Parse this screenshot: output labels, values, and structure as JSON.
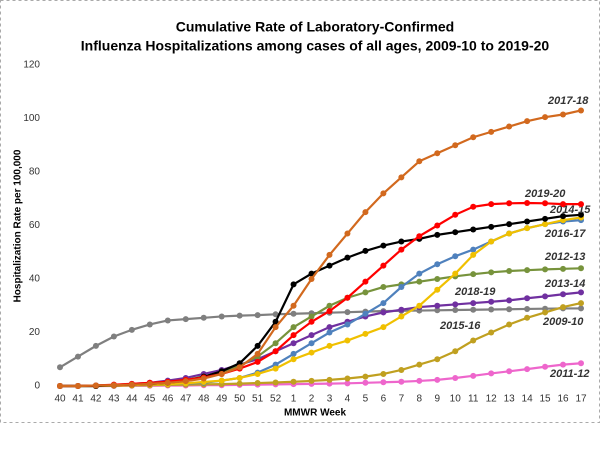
{
  "chart_data": {
    "type": "line",
    "title": [
      "Cumulative Rate of Laboratory-Confirmed",
      "Influenza Hospitalizations among cases of all ages, 2009-10 to 2019-20"
    ],
    "x_label": "MMWR Week",
    "y_label": "Hospitalization  Rate per 100,000",
    "categories": [
      "40",
      "41",
      "42",
      "43",
      "44",
      "45",
      "46",
      "47",
      "48",
      "49",
      "50",
      "51",
      "52",
      "1",
      "2",
      "3",
      "4",
      "5",
      "6",
      "7",
      "8",
      "9",
      "10",
      "11",
      "12",
      "13",
      "14",
      "15",
      "16",
      "17"
    ],
    "ylim": [
      0,
      120
    ],
    "yticks": [
      0,
      20,
      40,
      60,
      80,
      100,
      120
    ],
    "grid": false,
    "series": [
      {
        "name": "2009-10",
        "color": "#7f7f7f",
        "values": [
          7,
          11,
          15,
          18.5,
          21,
          23,
          24.5,
          25,
          25.5,
          26,
          26.3,
          26.5,
          26.8,
          27,
          27.2,
          27.4,
          27.6,
          27.8,
          28,
          28.1,
          28.2,
          28.3,
          28.4,
          28.5,
          28.6,
          28.7,
          28.8,
          28.9,
          29,
          29
        ]
      },
      {
        "name": "2011-12",
        "color": "#ee66cc",
        "values": [
          0,
          0,
          0,
          0,
          0.1,
          0.1,
          0.2,
          0.2,
          0.3,
          0.3,
          0.4,
          0.5,
          0.6,
          0.7,
          0.8,
          0.9,
          1,
          1.2,
          1.4,
          1.6,
          1.9,
          2.3,
          3,
          3.8,
          4.7,
          5.5,
          6.3,
          7.2,
          8,
          8.5
        ]
      },
      {
        "name": "2015-16",
        "color": "#c0a020",
        "values": [
          0,
          0,
          0,
          0.1,
          0.2,
          0.3,
          0.4,
          0.5,
          0.6,
          0.7,
          0.9,
          1.1,
          1.3,
          1.6,
          1.9,
          2.3,
          2.8,
          3.5,
          4.5,
          6,
          8,
          10,
          13,
          17,
          20,
          23,
          25.5,
          27.5,
          29.5,
          31
        ]
      },
      {
        "name": "2013-14",
        "color": "#7030a0",
        "values": [
          0,
          0,
          0.2,
          0.4,
          0.8,
          1.2,
          2,
          3,
          4.5,
          6,
          8,
          10,
          13,
          16,
          19,
          22,
          24,
          26,
          27.5,
          28.5,
          29.5,
          30,
          30.5,
          31,
          31.5,
          32,
          32.8,
          33.5,
          34.3,
          35
        ]
      },
      {
        "name": "2012-13",
        "color": "#77933c",
        "values": [
          0,
          0,
          0.2,
          0.4,
          0.6,
          1,
          1.5,
          2.3,
          3.5,
          5,
          7.5,
          11,
          16,
          22,
          26,
          30,
          33,
          35,
          37,
          38,
          39,
          40,
          41,
          41.8,
          42.5,
          43,
          43.3,
          43.6,
          43.8,
          44
        ]
      },
      {
        "name": "2016-17",
        "color": "#4f81bd",
        "values": [
          0,
          0,
          0,
          0.2,
          0.3,
          0.5,
          0.7,
          0.9,
          1.2,
          2,
          3,
          5,
          8,
          12,
          16,
          20,
          23,
          27,
          31,
          37,
          42,
          45.5,
          48.5,
          51,
          54,
          57,
          59,
          60.5,
          61.5,
          62
        ]
      },
      {
        "name": "2018-19",
        "color": "#f0c000",
        "values": [
          0,
          0,
          0,
          0.2,
          0.3,
          0.5,
          0.7,
          1,
          1.5,
          2,
          3,
          4.5,
          6.5,
          10,
          12.5,
          15,
          17,
          19.5,
          22,
          26,
          30,
          36,
          42,
          49,
          54,
          57,
          59,
          60.5,
          62,
          63
        ]
      },
      {
        "name": "2014-15",
        "color": "#000000",
        "values": [
          0,
          0,
          0,
          0.3,
          0.5,
          0.8,
          1.2,
          2,
          3.5,
          5.5,
          8.5,
          15,
          24,
          38,
          42,
          45,
          48,
          50.5,
          52.5,
          54,
          55,
          56.5,
          57.5,
          58.5,
          59.5,
          60.5,
          61.5,
          62.5,
          63.5,
          64
        ]
      },
      {
        "name": "2019-20",
        "color": "#ff0000",
        "values": [
          0,
          0,
          0.2,
          0.5,
          0.8,
          1.2,
          1.6,
          2.3,
          3.2,
          4.5,
          6.5,
          9,
          13,
          19,
          24,
          28,
          33,
          39,
          45,
          51,
          56,
          60,
          64,
          67,
          68,
          68.3,
          68.4,
          68.3,
          68,
          68
        ]
      },
      {
        "name": "2017-18",
        "color": "#d2691e",
        "values": [
          0,
          0,
          0.2,
          0.3,
          0.5,
          0.8,
          1.2,
          1.8,
          2.8,
          4.5,
          7,
          12,
          22,
          30,
          40,
          49,
          57,
          65,
          72,
          78,
          84,
          87,
          90,
          93,
          95,
          97,
          99,
          100.5,
          101.5,
          103
        ]
      }
    ]
  }
}
